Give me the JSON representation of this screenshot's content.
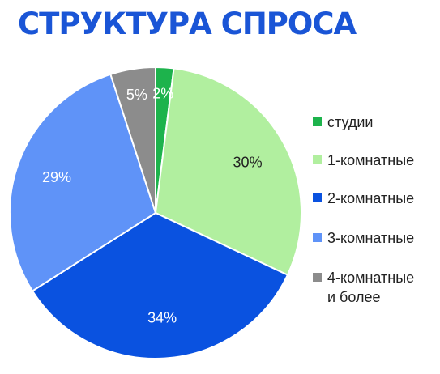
{
  "title": "СТРУКТУРА СПРОСА",
  "chart_data": {
    "type": "pie",
    "title": "СТРУКТУРА СПРОСА",
    "categories": [
      "студии",
      "1-комнатные",
      "2-комнатные",
      "3-комнатные",
      "4-комнатные и более"
    ],
    "legend_lines": [
      [
        "студии"
      ],
      [
        "1-комнатные"
      ],
      [
        "2-комнатные"
      ],
      [
        "3-комнатные"
      ],
      [
        "4-комнатные",
        "и более"
      ]
    ],
    "values": [
      2,
      30,
      34,
      29,
      5
    ],
    "data_labels": [
      "2%",
      "30%",
      "34%",
      "29%",
      "5%"
    ],
    "colors": [
      "#1db34c",
      "#b1ef9f",
      "#0a52e0",
      "#5f93f8",
      "#8c8c8c"
    ],
    "label_colors": [
      "#ffffff",
      "#222222",
      "#ffffff",
      "#ffffff",
      "#ffffff"
    ],
    "legend_position": "right"
  }
}
